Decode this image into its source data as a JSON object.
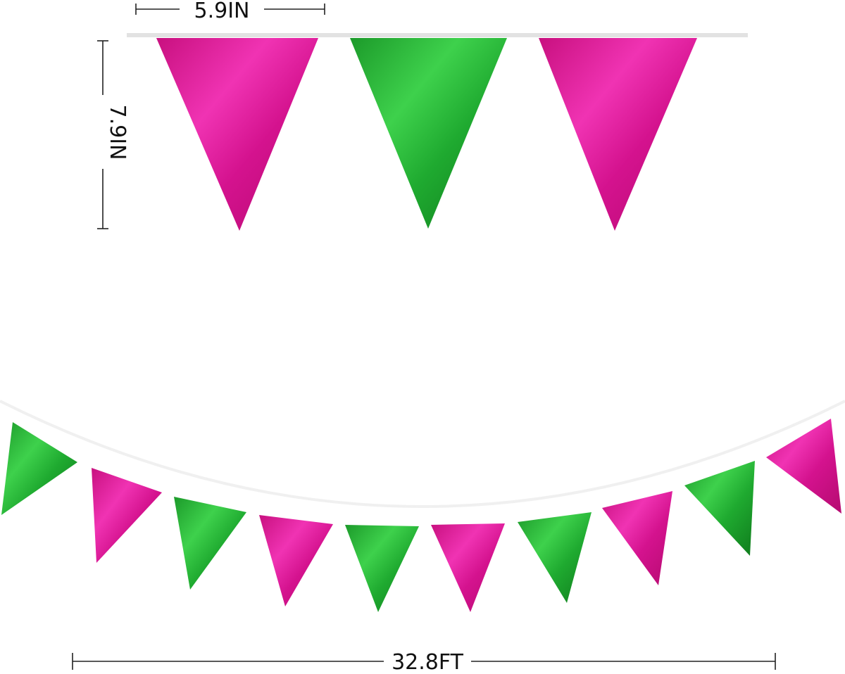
{
  "dimensions": {
    "width": "5.9IN",
    "height": "7.9IN",
    "length": "32.8FT"
  }
}
